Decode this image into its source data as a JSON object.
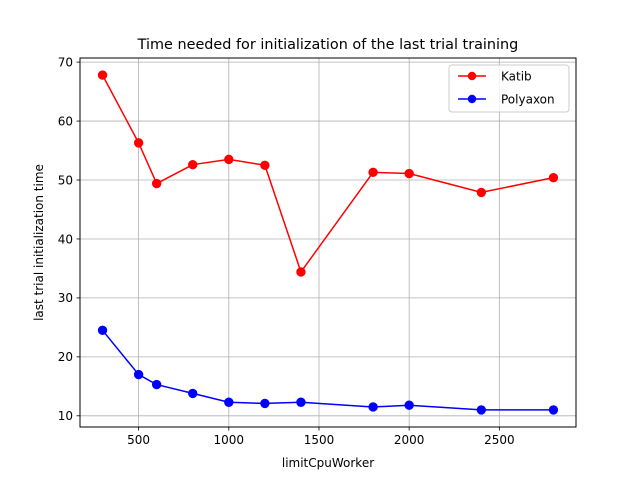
{
  "chart_data": {
    "type": "line",
    "title": "Time needed for initialization of the last trial training",
    "xlabel": "limitCpuWorker",
    "ylabel": "last trial initialization time",
    "xlim": [
      175,
      2925
    ],
    "ylim": [
      8.1,
      70.7
    ],
    "xticks": [
      500,
      1000,
      1500,
      2000,
      2500
    ],
    "yticks": [
      10,
      20,
      30,
      40,
      50,
      60,
      70
    ],
    "grid": true,
    "legend_position": "top-right",
    "x": [
      300,
      500,
      600,
      800,
      1000,
      1200,
      1400,
      1800,
      2000,
      2400,
      2800
    ],
    "series": [
      {
        "name": "Katib",
        "color": "#ff0000",
        "marker": "circle",
        "values": [
          67.8,
          56.3,
          49.4,
          52.6,
          53.5,
          52.5,
          34.4,
          51.3,
          51.1,
          47.9,
          50.4
        ]
      },
      {
        "name": "Polyaxon",
        "color": "#0000ff",
        "marker": "circle",
        "values": [
          24.5,
          17.0,
          15.3,
          13.8,
          12.3,
          12.1,
          12.3,
          11.5,
          11.8,
          11.0,
          11.0
        ]
      }
    ]
  }
}
